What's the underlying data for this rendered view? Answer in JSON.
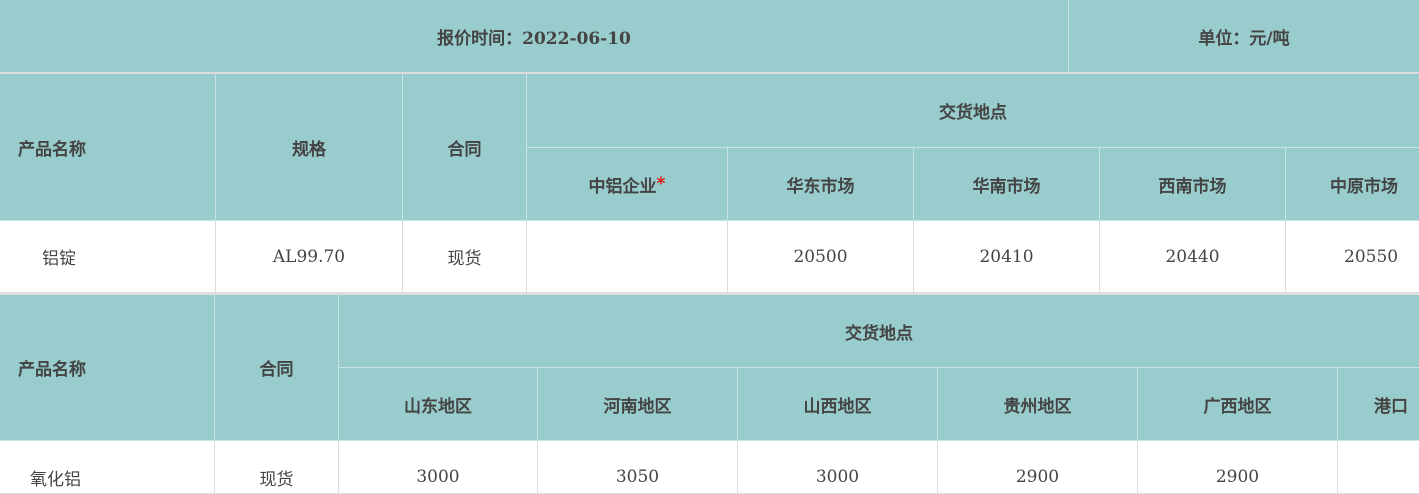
{
  "header": {
    "quote_time": "报价时间：2022-06-10",
    "unit": "单位：元/吨"
  },
  "colors": {
    "header_bg": "#99cccc",
    "required_star": "#ee0000"
  },
  "table1": {
    "col_product": "产品名称",
    "col_spec": "规格",
    "col_contract": "合同",
    "col_delivery": "交货地点",
    "locations": [
      "中铝企业",
      "华东市场",
      "华南市场",
      "西南市场",
      "中原市场"
    ],
    "required_mark": "*",
    "row": {
      "product": "铝锭",
      "spec": "AL99.70",
      "contract": "现货",
      "prices": [
        "",
        "20500",
        "20410",
        "20440",
        "20550"
      ]
    }
  },
  "table2": {
    "col_product": "产品名称",
    "col_contract": "合同",
    "col_delivery": "交货地点",
    "locations": [
      "山东地区",
      "河南地区",
      "山西地区",
      "贵州地区",
      "广西地区",
      "港口"
    ],
    "row": {
      "product": "氧化铝",
      "contract": "现货",
      "prices": [
        "3000",
        "3050",
        "3000",
        "2900",
        "2900",
        ""
      ]
    }
  }
}
